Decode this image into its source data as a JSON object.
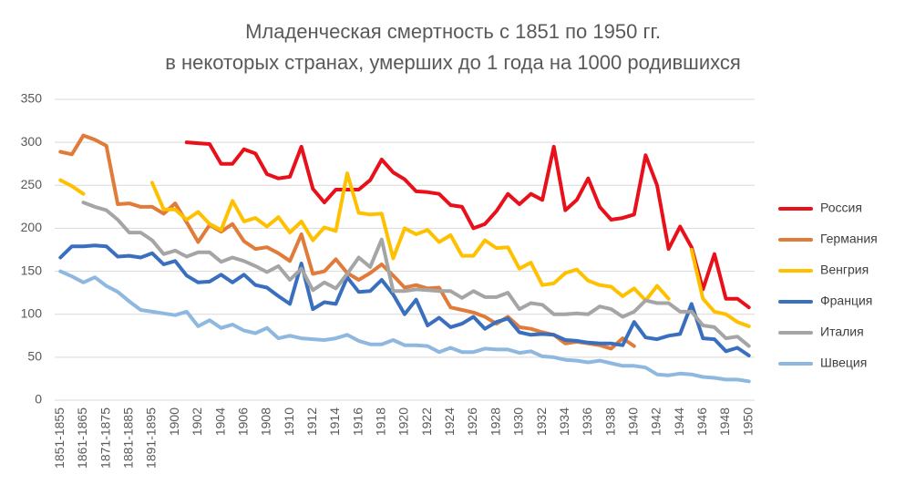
{
  "chart_data": {
    "type": "line",
    "title": [
      "Младенческая смертность с 1851 по 1950 гг.",
      "в некоторых странах, умерших до 1 года на 1000 родившихся"
    ],
    "categories": [
      "1851-1855",
      null,
      "1861-1865",
      null,
      "1871-1875",
      null,
      "1881-1885",
      null,
      "1891-1895",
      null,
      "1900",
      null,
      "1902",
      null,
      "1904",
      null,
      "1906",
      null,
      "1908",
      null,
      "1910",
      null,
      "1912",
      null,
      "1914",
      null,
      "1916",
      null,
      "1918",
      null,
      "1920",
      null,
      "1922",
      null,
      "1924",
      null,
      "1926",
      null,
      "1928",
      null,
      "1930",
      null,
      "1932",
      null,
      "1934",
      null,
      "1936",
      null,
      "1938",
      null,
      "1940",
      null,
      "1942",
      null,
      "1944",
      null,
      "1946",
      null,
      "1948",
      null,
      "1950"
    ],
    "ylim": [
      0,
      350
    ],
    "yticks": [
      0,
      50,
      100,
      150,
      200,
      250,
      300,
      350
    ],
    "grid": true,
    "legend": "right",
    "series": [
      {
        "name": "Россия",
        "color": "#e8101a",
        "values": [
          null,
          null,
          null,
          null,
          null,
          null,
          null,
          null,
          null,
          null,
          null,
          300,
          299,
          298,
          275,
          275,
          292,
          287,
          263,
          258,
          260,
          295,
          246,
          230,
          245,
          245,
          245,
          256,
          280,
          265,
          257,
          243,
          242,
          240,
          227,
          225,
          200,
          205,
          220,
          240,
          228,
          240,
          233,
          295,
          221,
          233,
          258,
          225,
          210,
          212,
          216,
          285,
          250,
          176,
          202,
          178,
          129,
          170,
          118,
          118,
          108
        ]
      },
      {
        "name": "Германия",
        "color": "#e07b39",
        "values": [
          289,
          286,
          308,
          303,
          296,
          228,
          229,
          225,
          225,
          217,
          229,
          207,
          184,
          204,
          196,
          205,
          185,
          176,
          178,
          171,
          162,
          193,
          147,
          150,
          164,
          148,
          140,
          148,
          158,
          145,
          131,
          134,
          130,
          131,
          108,
          105,
          102,
          97,
          89,
          97,
          85,
          83,
          79,
          76,
          66,
          68,
          66,
          64,
          60,
          72,
          63,
          null,
          null,
          null,
          null,
          null,
          null,
          null,
          null,
          null,
          null
        ]
      },
      {
        "name": "Венгрия",
        "color": "#ffc000",
        "values": [
          256,
          249,
          240,
          null,
          null,
          null,
          null,
          null,
          253,
          222,
          222,
          210,
          219,
          205,
          198,
          232,
          208,
          212,
          202,
          213,
          195,
          208,
          186,
          201,
          197,
          264,
          218,
          216,
          217,
          165,
          200,
          193,
          198,
          184,
          192,
          168,
          168,
          186,
          177,
          178,
          153,
          160,
          134,
          136,
          148,
          152,
          139,
          134,
          132,
          121,
          130,
          116,
          133,
          118,
          null,
          175,
          118,
          103,
          100,
          91,
          86
        ]
      },
      {
        "name": "Франция",
        "color": "#3a6fbf",
        "values": [
          166,
          179,
          179,
          180,
          179,
          167,
          168,
          166,
          171,
          158,
          162,
          145,
          137,
          138,
          146,
          137,
          146,
          134,
          131,
          121,
          112,
          159,
          106,
          114,
          112,
          143,
          126,
          127,
          140,
          123,
          100,
          117,
          87,
          96,
          85,
          89,
          97,
          83,
          91,
          95,
          79,
          76,
          77,
          76,
          70,
          69,
          67,
          66,
          66,
          64,
          91,
          73,
          71,
          75,
          77,
          112,
          72,
          71,
          57,
          61,
          52
        ]
      },
      {
        "name": "Италия",
        "color": "#a5a5a5",
        "values": [
          null,
          null,
          230,
          225,
          221,
          210,
          195,
          195,
          186,
          170,
          174,
          167,
          172,
          172,
          161,
          166,
          162,
          156,
          149,
          156,
          140,
          153,
          128,
          137,
          130,
          147,
          166,
          155,
          187,
          127,
          127,
          129,
          128,
          127,
          127,
          119,
          127,
          120,
          120,
          125,
          106,
          113,
          111,
          100,
          100,
          101,
          100,
          109,
          106,
          97,
          103,
          116,
          113,
          113,
          103,
          103,
          87,
          85,
          72,
          74,
          63
        ]
      },
      {
        "name": "Швеция",
        "color": "#8fb8e0",
        "values": [
          150,
          144,
          137,
          143,
          133,
          126,
          115,
          105,
          103,
          101,
          99,
          103,
          86,
          93,
          84,
          88,
          81,
          78,
          84,
          72,
          75,
          72,
          71,
          70,
          72,
          76,
          69,
          65,
          65,
          70,
          64,
          64,
          63,
          56,
          61,
          56,
          56,
          60,
          59,
          59,
          55,
          57,
          51,
          50,
          47,
          46,
          44,
          46,
          43,
          40,
          40,
          38,
          30,
          29,
          31,
          30,
          27,
          26,
          24,
          24,
          22
        ]
      }
    ]
  }
}
